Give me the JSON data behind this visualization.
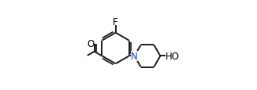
{
  "background_color": "#ffffff",
  "line_color": "#1a1a1a",
  "line_width": 1.4,
  "text_color": "#000000",
  "N_color": "#2040c0",
  "label_O": "O",
  "label_F": "F",
  "label_N": "N",
  "label_HO": "HO",
  "figsize": [
    3.26,
    1.16
  ],
  "dpi": 100
}
